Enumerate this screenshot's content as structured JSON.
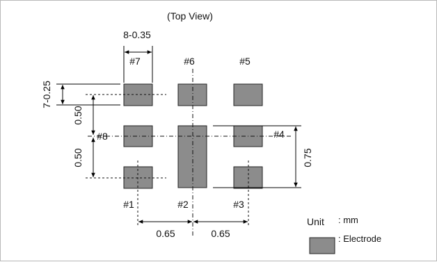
{
  "title": "(Top View)",
  "colors": {
    "electrode": "#8c8c8c",
    "border": "#b8b8b8"
  },
  "electrode_labels": {
    "e1": "#1",
    "e2": "#2",
    "e3": "#3",
    "e4": "#4",
    "e5": "#5",
    "e6": "#6",
    "e7": "#7",
    "e8": "#8"
  },
  "dimensions": {
    "pad_width": "8-0.35",
    "pad_height": "7-0.25",
    "row_pitch_upper": "0.50",
    "row_pitch_lower": "0.50",
    "col_pitch_left": "0.65",
    "col_pitch_right": "0.65",
    "center_pad_height": "0.75"
  },
  "legend": {
    "unit_label": "Unit",
    "unit_value": ": mm",
    "electrode_label": ": Electrode"
  }
}
